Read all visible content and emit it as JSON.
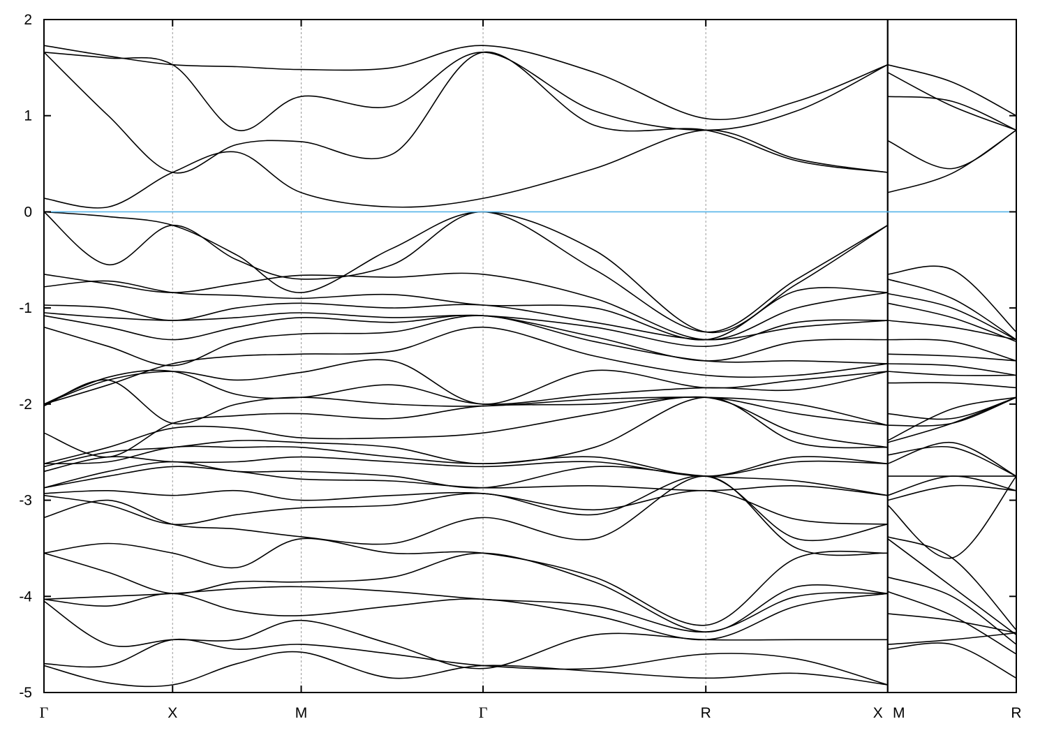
{
  "chart_data": {
    "type": "line",
    "title": "",
    "xlabel": "",
    "ylabel": "",
    "ylim": [
      -5,
      2
    ],
    "yticks": [
      "-5",
      "-4",
      "-3",
      "-2",
      "-1",
      "0",
      "1",
      "2"
    ],
    "grid": "dashed vertical lines at high-symmetry points",
    "line_color": "#000000",
    "fermi_level": {
      "value": 0,
      "color": "#56b4e9"
    },
    "kpoints": [
      {
        "label": "Γ",
        "k": 0.0
      },
      {
        "label": "X",
        "k": 0.5
      },
      {
        "label": "M",
        "k": 1.0
      },
      {
        "label": "Γ",
        "k": 1.707
      },
      {
        "label": "R",
        "k": 2.573
      },
      {
        "label": "X",
        "k": 3.28
      },
      {
        "label": "M",
        "k": 3.28
      },
      {
        "label": "R",
        "k": 3.78
      }
    ],
    "path_main": {
      "k": [
        0,
        0.25,
        0.5,
        0.75,
        1.0,
        1.354,
        1.707,
        2.14,
        2.573,
        2.927,
        3.28
      ],
      "bands": [
        [
          1.73,
          1.62,
          1.53,
          1.51,
          1.48,
          1.5,
          1.73,
          1.45,
          0.97,
          1.15,
          1.53
        ],
        [
          1.66,
          1.6,
          1.53,
          0.85,
          1.2,
          1.1,
          1.66,
          1.05,
          0.85,
          1.05,
          1.53
        ],
        [
          1.66,
          1.0,
          0.41,
          0.7,
          0.73,
          0.6,
          1.66,
          0.9,
          0.85,
          0.53,
          0.41
        ],
        [
          0.14,
          0.05,
          0.41,
          0.62,
          0.2,
          0.05,
          0.14,
          0.45,
          0.85,
          0.55,
          0.41
        ],
        [
          0.0,
          -0.05,
          -0.14,
          -0.45,
          -0.84,
          -0.38,
          0.0,
          -0.4,
          -1.25,
          -0.75,
          -0.14
        ],
        [
          0.0,
          -0.55,
          -0.14,
          -0.5,
          -0.7,
          -0.55,
          0.0,
          -0.6,
          -1.25,
          -0.7,
          -0.14
        ],
        [
          -0.65,
          -0.75,
          -0.84,
          -0.75,
          -0.66,
          -0.68,
          -0.65,
          -0.9,
          -1.33,
          -1.0,
          -0.84
        ],
        [
          -0.78,
          -0.72,
          -0.84,
          -0.87,
          -0.9,
          -0.86,
          -0.97,
          -1.0,
          -1.33,
          -0.82,
          -0.84
        ],
        [
          -0.97,
          -1.0,
          -1.13,
          -1.0,
          -0.95,
          -1.0,
          -0.97,
          -1.15,
          -1.33,
          -1.2,
          -1.13
        ],
        [
          -1.05,
          -1.1,
          -1.13,
          -1.1,
          -1.05,
          -1.1,
          -1.08,
          -1.2,
          -1.4,
          -1.15,
          -1.13
        ],
        [
          -1.08,
          -1.2,
          -1.33,
          -1.2,
          -1.1,
          -1.15,
          -1.08,
          -1.3,
          -1.55,
          -1.35,
          -1.33
        ],
        [
          -1.2,
          -1.4,
          -1.6,
          -1.35,
          -1.27,
          -1.25,
          -1.08,
          -1.35,
          -1.55,
          -1.55,
          -1.58
        ],
        [
          -2.0,
          -1.8,
          -1.58,
          -1.5,
          -1.48,
          -1.45,
          -1.2,
          -1.5,
          -1.7,
          -1.7,
          -1.58
        ],
        [
          -2.0,
          -1.75,
          -1.66,
          -1.75,
          -1.67,
          -1.55,
          -2.0,
          -1.65,
          -1.83,
          -1.75,
          -1.66
        ],
        [
          -2.0,
          -1.72,
          -1.66,
          -1.9,
          -1.93,
          -1.8,
          -2.0,
          -1.9,
          -1.83,
          -1.85,
          -1.66
        ],
        [
          -2.02,
          -1.75,
          -2.2,
          -2.0,
          -1.93,
          -2.0,
          -2.02,
          -1.95,
          -1.93,
          -2.0,
          -2.22
        ],
        [
          -2.3,
          -2.55,
          -2.2,
          -2.12,
          -2.1,
          -2.15,
          -2.02,
          -2.0,
          -1.93,
          -2.1,
          -2.22
        ],
        [
          -2.62,
          -2.45,
          -2.25,
          -2.25,
          -2.35,
          -2.35,
          -2.3,
          -2.1,
          -1.93,
          -2.3,
          -2.45
        ],
        [
          -2.65,
          -2.5,
          -2.45,
          -2.38,
          -2.4,
          -2.45,
          -2.62,
          -2.45,
          -1.93,
          -2.4,
          -2.45
        ],
        [
          -2.62,
          -2.6,
          -2.45,
          -2.45,
          -2.45,
          -2.55,
          -2.62,
          -2.55,
          -2.75,
          -2.55,
          -2.62
        ],
        [
          -2.7,
          -2.55,
          -2.6,
          -2.6,
          -2.55,
          -2.6,
          -2.65,
          -2.6,
          -2.75,
          -2.6,
          -2.62
        ],
        [
          -2.87,
          -2.7,
          -2.6,
          -2.7,
          -2.7,
          -2.75,
          -2.87,
          -2.65,
          -2.75,
          -2.8,
          -2.95
        ],
        [
          -2.87,
          -2.75,
          -2.65,
          -2.7,
          -2.78,
          -2.8,
          -2.87,
          -2.85,
          -2.9,
          -2.85,
          -2.95
        ],
        [
          -2.93,
          -2.9,
          -2.95,
          -2.9,
          -3.0,
          -2.95,
          -2.93,
          -3.1,
          -2.9,
          -3.2,
          -3.25
        ],
        [
          -2.95,
          -3.05,
          -3.25,
          -3.15,
          -3.08,
          -3.05,
          -2.93,
          -3.15,
          -2.75,
          -3.4,
          -3.25
        ],
        [
          -3.18,
          -3.0,
          -3.25,
          -3.3,
          -3.38,
          -3.45,
          -3.18,
          -3.4,
          -2.75,
          -3.5,
          -3.55
        ],
        [
          -3.55,
          -3.45,
          -3.55,
          -3.7,
          -3.4,
          -3.55,
          -3.55,
          -3.8,
          -4.3,
          -3.6,
          -3.55
        ],
        [
          -3.55,
          -3.75,
          -3.97,
          -3.85,
          -3.85,
          -3.8,
          -3.55,
          -3.85,
          -4.37,
          -3.9,
          -3.97
        ],
        [
          -4.03,
          -4.0,
          -3.97,
          -3.92,
          -3.9,
          -3.95,
          -4.03,
          -4.1,
          -4.37,
          -4.0,
          -3.97
        ],
        [
          -4.03,
          -4.1,
          -3.97,
          -4.15,
          -4.2,
          -4.1,
          -4.03,
          -4.2,
          -4.45,
          -4.1,
          -3.97
        ],
        [
          -4.05,
          -4.5,
          -4.45,
          -4.45,
          -4.25,
          -4.5,
          -4.75,
          -4.4,
          -4.45,
          -4.45,
          -4.45
        ],
        [
          -4.7,
          -4.72,
          -4.45,
          -4.55,
          -4.5,
          -4.6,
          -4.72,
          -4.75,
          -4.6,
          -4.65,
          -4.92
        ],
        [
          -4.72,
          -4.9,
          -4.92,
          -4.7,
          -4.58,
          -4.85,
          -4.72,
          -4.78,
          -4.85,
          -4.8,
          -4.92
        ]
      ]
    },
    "path_mr": {
      "k": [
        3.28,
        3.53,
        3.78
      ],
      "bands": [
        [
          1.53,
          1.35,
          1.0
        ],
        [
          1.45,
          1.1,
          0.85
        ],
        [
          1.2,
          1.15,
          0.85
        ],
        [
          0.74,
          0.45,
          0.85
        ],
        [
          0.2,
          0.4,
          0.85
        ],
        [
          -0.65,
          -0.6,
          -1.25
        ],
        [
          -0.7,
          -0.9,
          -1.33
        ],
        [
          -0.85,
          -1.0,
          -1.33
        ],
        [
          -0.95,
          -1.1,
          -1.35
        ],
        [
          -1.13,
          -1.2,
          -1.33
        ],
        [
          -1.33,
          -1.35,
          -1.55
        ],
        [
          -1.48,
          -1.5,
          -1.55
        ],
        [
          -1.58,
          -1.6,
          -1.7
        ],
        [
          -1.66,
          -1.7,
          -1.7
        ],
        [
          -1.78,
          -1.78,
          -1.83
        ],
        [
          -2.1,
          -2.15,
          -1.93
        ],
        [
          -2.22,
          -2.2,
          -1.93
        ],
        [
          -2.38,
          -2.05,
          -1.93
        ],
        [
          -2.4,
          -2.2,
          -1.93
        ],
        [
          -2.53,
          -2.45,
          -2.75
        ],
        [
          -2.62,
          -2.4,
          -2.75
        ],
        [
          -2.75,
          -2.75,
          -2.75
        ],
        [
          -2.95,
          -2.75,
          -2.9
        ],
        [
          -3.0,
          -2.85,
          -2.9
        ],
        [
          -3.05,
          -3.6,
          -2.75
        ],
        [
          -3.38,
          -3.6,
          -4.35
        ],
        [
          -3.4,
          -3.9,
          -4.4
        ],
        [
          -3.8,
          -4.0,
          -4.5
        ],
        [
          -3.95,
          -4.2,
          -4.6
        ],
        [
          -4.18,
          -4.25,
          -4.38
        ],
        [
          -4.5,
          -4.45,
          -4.38
        ],
        [
          -4.55,
          -4.5,
          -4.85
        ]
      ]
    }
  }
}
